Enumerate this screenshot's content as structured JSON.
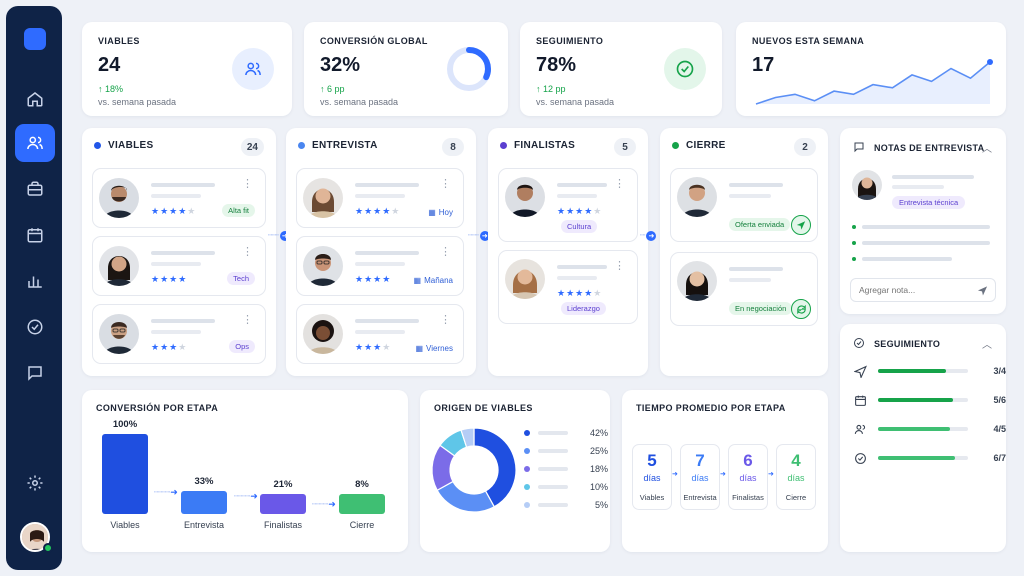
{
  "icons": [
    "home-icon",
    "users-icon",
    "briefcase-icon",
    "calendar-icon",
    "chart-icon",
    "check-icon",
    "chat-icon",
    "settings-icon"
  ],
  "kpis": [
    {
      "label": "VIABLES",
      "value": "24",
      "delta": "↑ 18%",
      "sub": "vs. semana pasada"
    },
    {
      "label": "CONVERSIÓN GLOBAL",
      "value": "32%",
      "delta": "↑ 6 pp",
      "sub": "vs. semana pasada"
    },
    {
      "label": "SEGUIMIENTO",
      "value": "78%",
      "delta": "↑ 12 pp",
      "sub": "vs. semana pasada"
    },
    {
      "label": "NUEVOS ESTA SEMANA",
      "value": "17"
    }
  ],
  "columns": [
    {
      "title": "VIABLES",
      "count": "24",
      "color": "#2156e8"
    },
    {
      "title": "ENTREVISTA",
      "count": "8",
      "color": "#4a86f0"
    },
    {
      "title": "FINALISTAS",
      "count": "5",
      "color": "#5b3fd0"
    },
    {
      "title": "CIERRE",
      "count": "2",
      "color": "#16a34a"
    }
  ],
  "cards": {
    "viables": [
      {
        "stars": 4,
        "tag": "Alta fit"
      },
      {
        "stars": 4,
        "tag": "Tech"
      },
      {
        "stars": 3,
        "tag": "Ops"
      }
    ],
    "entrevista": [
      {
        "stars": 4,
        "date": "Hoy"
      },
      {
        "stars": 4,
        "date": "Mañana"
      },
      {
        "stars": 3.5,
        "date": "Viernes"
      }
    ],
    "finalistas": [
      {
        "stars": 4,
        "tag": "Cultura"
      },
      {
        "stars": 4,
        "tag": "Liderazgo"
      }
    ],
    "cierre": [
      {
        "tag": "Oferta enviada"
      },
      {
        "tag": "En negociación"
      }
    ]
  },
  "notes": {
    "title": "NOTAS DE ENTREVISTA",
    "tag": "Entrevista técnica",
    "placeholder": "Agregar nota..."
  },
  "seguimiento": {
    "title": "SEGUIMIENTO",
    "rows": [
      {
        "icon": "send-icon",
        "value": "3/4",
        "fraction": 0.75
      },
      {
        "icon": "calendar-icon",
        "value": "5/6",
        "fraction": 0.83
      },
      {
        "icon": "users-icon",
        "value": "4/5",
        "fraction": 0.8
      },
      {
        "icon": "check-icon",
        "value": "6/7",
        "fraction": 0.86
      }
    ]
  },
  "chart_data": [
    {
      "type": "bar",
      "title": "CONVERSIÓN POR ETAPA",
      "categories": [
        "Viables",
        "Entrevista",
        "Finalistas",
        "Cierre"
      ],
      "values": [
        100,
        33,
        21,
        8
      ],
      "labels": [
        "100%",
        "33%",
        "21%",
        "8%"
      ],
      "ylim": [
        0,
        100
      ],
      "colors": [
        "#1f4fe0",
        "#3b7bf5",
        "#6a58e8",
        "#3fbf73"
      ]
    },
    {
      "type": "pie",
      "title": "ORIGEN DE VIABLES",
      "values": [
        42,
        25,
        18,
        10,
        5
      ],
      "labels": [
        "42%",
        "25%",
        "18%",
        "10%",
        "5%"
      ],
      "colors": [
        "#1f4fe0",
        "#5b8ff5",
        "#7b6ce8",
        "#5fc6e8",
        "#b5cdf6"
      ]
    },
    {
      "type": "table",
      "title": "TIEMPO PROMEDIO POR ETAPA",
      "categories": [
        "Viables",
        "Entrevista",
        "Finalistas",
        "Cierre"
      ],
      "values": [
        5,
        7,
        6,
        4
      ],
      "unit": "días"
    },
    {
      "type": "line",
      "title": "NUEVOS ESTA SEMANA",
      "values": [
        4,
        6,
        7,
        5,
        8,
        7,
        10,
        9,
        13,
        11,
        15,
        12,
        17
      ]
    }
  ],
  "donut_kpi": {
    "fraction": 0.32
  },
  "legend_labels": {
    "p0": "42%",
    "p1": "25%",
    "p2": "18%",
    "p3": "10%",
    "p4": "5%"
  }
}
